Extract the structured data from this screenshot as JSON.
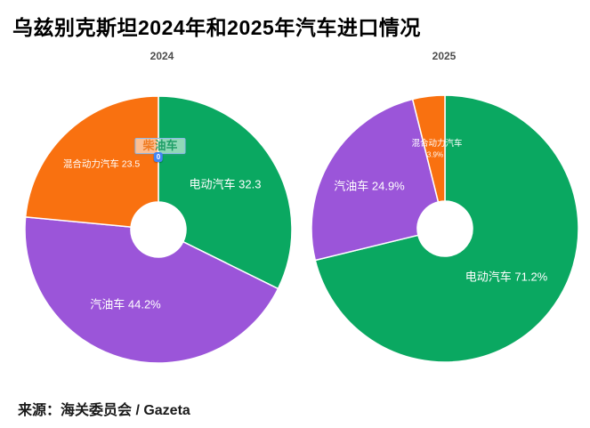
{
  "title": "乌兹别克斯坦2024年和2025年汽车进口情况",
  "source": "来源：海关委员会 / Gazeta",
  "tooltip": {
    "label": "柴油车",
    "value": "0"
  },
  "chart_data": [
    {
      "type": "pie",
      "title": "2024",
      "hole_ratio": 0.21,
      "legend_position": "none",
      "slices": [
        {
          "name": "电动汽车",
          "value": 32.3,
          "color": "#0aa861",
          "label": "电动汽车 32.3"
        },
        {
          "name": "汽油车",
          "value": 44.2,
          "color": "#9b55d9",
          "label": "汽油车 44.2%"
        },
        {
          "name": "混合动力汽车",
          "value": 23.5,
          "color": "#f97110",
          "label": "混合动力汽车 23.5"
        },
        {
          "name": "柴油车",
          "value": 0,
          "color": "#4285f4",
          "label": "柴油车"
        }
      ]
    },
    {
      "type": "pie",
      "title": "2025",
      "hole_ratio": 0.21,
      "legend_position": "none",
      "slices": [
        {
          "name": "电动汽车",
          "value": 71.2,
          "color": "#0aa861",
          "label": "电动汽车 71.2%"
        },
        {
          "name": "汽油车",
          "value": 24.9,
          "color": "#9b55d9",
          "label": "汽油车 24.9%"
        },
        {
          "name": "混合动力汽车",
          "value": 3.9,
          "color": "#f97110",
          "label": "混合动力汽车",
          "value_label": "3.9%"
        }
      ]
    }
  ]
}
